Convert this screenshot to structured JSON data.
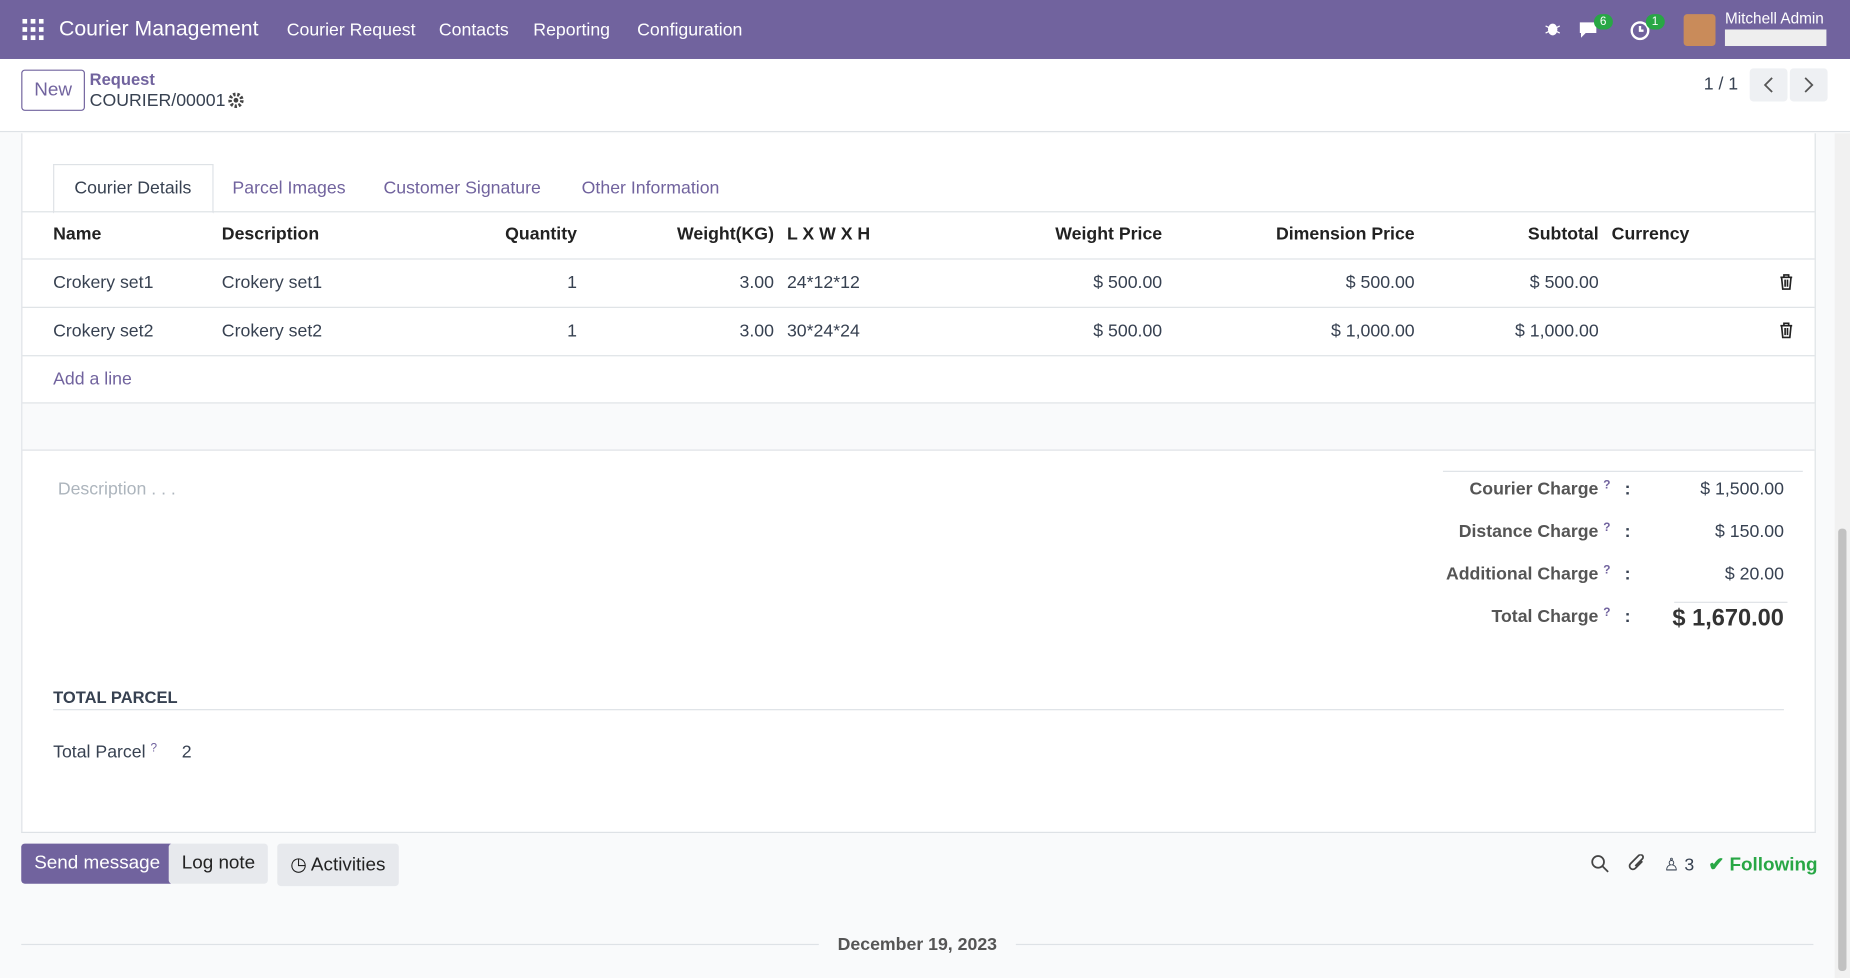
{
  "navbar": {
    "app_name": "Courier Management",
    "menu": [
      "Courier Request",
      "Contacts",
      "Reporting",
      "Configuration"
    ],
    "messages_badge": "6",
    "activities_badge": "1",
    "user": "Mitchell Admin"
  },
  "control_panel": {
    "new_button": "New",
    "breadcrumb": "Request",
    "record": "COURIER/00001",
    "pager": "1 / 1"
  },
  "tabs": [
    "Courier Details",
    "Parcel Images",
    "Customer Signature",
    "Other Information"
  ],
  "table": {
    "headers": [
      "Name",
      "Description",
      "Quantity",
      "Weight(KG)",
      "L X W X H",
      "Weight Price",
      "Dimension Price",
      "Subtotal",
      "Currency"
    ],
    "rows": [
      [
        "Crokery set1",
        "Crokery set1",
        "1",
        "3.00",
        "24*12*12",
        "$ 500.00",
        "$ 500.00",
        "$ 500.00"
      ],
      [
        "Crokery set2",
        "Crokery set2",
        "1",
        "3.00",
        "30*24*24",
        "$ 500.00",
        "$ 1,000.00",
        "$ 1,000.00"
      ]
    ],
    "add_line": "Add a line"
  },
  "description_placeholder": "Description . . .",
  "help_mark": "?",
  "separator": ":",
  "charges": [
    {
      "label": "Courier Charge",
      "value": "$ 1,500.00"
    },
    {
      "label": "Distance Charge",
      "value": "$ 150.00"
    },
    {
      "label": "Additional Charge",
      "value": "$ 20.00"
    },
    {
      "label": "Total Charge",
      "value": "$ 1,670.00"
    }
  ],
  "total_parcel": {
    "section": "TOTAL PARCEL",
    "label": "Total Parcel",
    "value": "2"
  },
  "chatter": {
    "send_message": "Send message",
    "log_note": "Log note",
    "activities": "Activities",
    "followers": "3",
    "following": "Following",
    "date": "December 19, 2023"
  }
}
